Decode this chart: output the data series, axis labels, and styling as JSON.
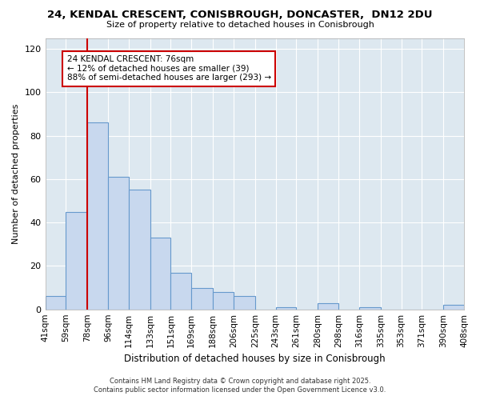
{
  "title": "24, KENDAL CRESCENT, CONISBROUGH, DONCASTER,  DN12 2DU",
  "subtitle": "Size of property relative to detached houses in Conisbrough",
  "xlabel": "Distribution of detached houses by size in Conisbrough",
  "ylabel": "Number of detached properties",
  "bin_labels": [
    "41sqm",
    "59sqm",
    "78sqm",
    "96sqm",
    "114sqm",
    "133sqm",
    "151sqm",
    "169sqm",
    "188sqm",
    "206sqm",
    "225sqm",
    "243sqm",
    "261sqm",
    "280sqm",
    "298sqm",
    "316sqm",
    "335sqm",
    "353sqm",
    "371sqm",
    "390sqm",
    "408sqm"
  ],
  "bin_edges": [
    41,
    59,
    78,
    96,
    114,
    133,
    151,
    169,
    188,
    206,
    225,
    243,
    261,
    280,
    298,
    316,
    335,
    353,
    371,
    390,
    408
  ],
  "bar_values": [
    6,
    45,
    86,
    61,
    55,
    33,
    17,
    10,
    8,
    6,
    0,
    1,
    0,
    3,
    0,
    1,
    0,
    0,
    0,
    2
  ],
  "bar_color": "#c8d8ee",
  "bar_edge_color": "#6699cc",
  "plot_bg_color": "#dde8f0",
  "fig_bg_color": "#ffffff",
  "grid_color": "#ffffff",
  "vline_x": 78,
  "vline_color": "#cc0000",
  "ylim": [
    0,
    125
  ],
  "yticks": [
    0,
    20,
    40,
    60,
    80,
    100,
    120
  ],
  "annotation_text": "24 KENDAL CRESCENT: 76sqm\n← 12% of detached houses are smaller (39)\n88% of semi-detached houses are larger (293) →",
  "annotation_box_color": "white",
  "annotation_box_edge": "#cc0000",
  "footer_line1": "Contains HM Land Registry data © Crown copyright and database right 2025.",
  "footer_line2": "Contains public sector information licensed under the Open Government Licence v3.0."
}
